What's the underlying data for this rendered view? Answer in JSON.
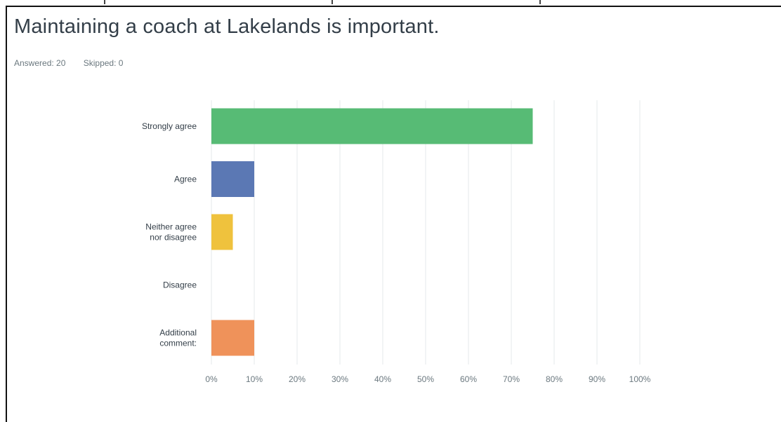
{
  "question": {
    "title": "Maintaining a coach at Lakelands is important.",
    "answered": "Answered: 20",
    "skipped": "Skipped: 0"
  },
  "colors": {
    "grid": "#e6e9eb",
    "axis_text": "#6b787f",
    "label_text": "#333e48"
  },
  "chart_data": {
    "type": "bar",
    "orientation": "horizontal",
    "categories": [
      [
        "Strongly agree"
      ],
      [
        "Agree"
      ],
      [
        "Neither agree",
        "nor disagree"
      ],
      [
        "Disagree"
      ],
      [
        "Additional",
        "comment:"
      ]
    ],
    "values": [
      75,
      10,
      5,
      0,
      10
    ],
    "colors": [
      "#57bb75",
      "#5b78b4",
      "#efc23d",
      "#e9573f",
      "#ef925a"
    ],
    "xlim": [
      0,
      100
    ],
    "xticks": [
      "0%",
      "10%",
      "20%",
      "30%",
      "40%",
      "50%",
      "60%",
      "70%",
      "80%",
      "90%",
      "100%"
    ],
    "grid": true,
    "xlabel": "",
    "ylabel": ""
  }
}
